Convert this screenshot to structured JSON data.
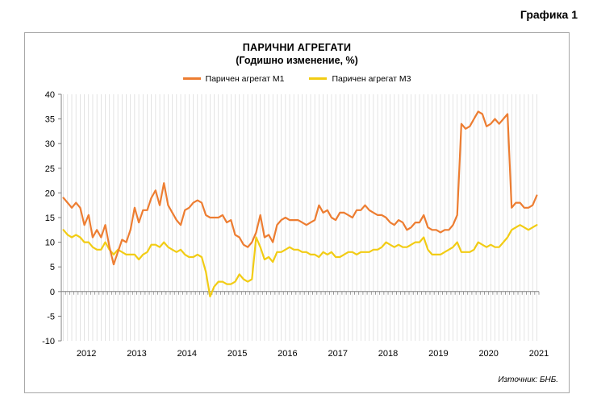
{
  "figure_label": "Графика 1",
  "source": "Източник: БНБ.",
  "chart_data": {
    "type": "line",
    "title": "ПАРИЧНИ АГРЕГАТИ",
    "subtitle": "(Годишно изменение, %)",
    "xlabel": "",
    "ylabel": "",
    "ylim": [
      -10,
      40
    ],
    "yticks": [
      40,
      35,
      30,
      25,
      20,
      15,
      10,
      5,
      0,
      -5,
      -10
    ],
    "x_tick_labels": [
      "2012",
      "2013",
      "2014",
      "2015",
      "2016",
      "2017",
      "2018",
      "2019",
      "2020",
      "2021"
    ],
    "x_start": "2012-01",
    "grid": true,
    "legend_position": "top",
    "series": [
      {
        "name": "Паричен агрегат М1",
        "color": "#ed7d31",
        "values": [
          19,
          18,
          17,
          18,
          17,
          13.5,
          15.5,
          11,
          12.5,
          11,
          13.5,
          9,
          5.5,
          8,
          10.5,
          10,
          12.5,
          17,
          14,
          16.5,
          16.5,
          19,
          20.5,
          17.5,
          22,
          17.5,
          16,
          14.5,
          13.5,
          16.5,
          17,
          18,
          18.5,
          18,
          15.5,
          15,
          15,
          15,
          15.5,
          14,
          14.5,
          11.5,
          11,
          9.5,
          9,
          10,
          12,
          15.5,
          11,
          11.5,
          10,
          13.5,
          14.5,
          15,
          14.5,
          14.5,
          14.5,
          14,
          13.5,
          14,
          14.5,
          17.5,
          16,
          16.5,
          15,
          14.5,
          16,
          16,
          15.5,
          15,
          16.5,
          16.5,
          17.5,
          16.5,
          16,
          15.5,
          15.5,
          15,
          14,
          13.5,
          14.5,
          14,
          12.5,
          13,
          14,
          14,
          15.5,
          13,
          12.5,
          12.5,
          12,
          12.5,
          12.5,
          13.5,
          15.5,
          34,
          33,
          33.5,
          35,
          36.5,
          36,
          33.5,
          34,
          35,
          34,
          35,
          36,
          17,
          18,
          18,
          17,
          17,
          17.5,
          19.5
        ]
      },
      {
        "name": "Паричен агрегат М3",
        "color": "#f2cc14",
        "values": [
          12.5,
          11.5,
          11,
          11.5,
          11,
          10,
          10,
          9,
          8.5,
          8.5,
          10,
          8.5,
          7.5,
          8.5,
          8,
          7.5,
          7.5,
          7.5,
          6.5,
          7.5,
          8,
          9.5,
          9.5,
          9,
          10,
          9,
          8.5,
          8,
          8.5,
          7.5,
          7,
          7,
          7.5,
          7,
          4,
          -1,
          1,
          2,
          2,
          1.5,
          1.5,
          2,
          3.5,
          2.5,
          2,
          2.5,
          11,
          9,
          6.5,
          7,
          6,
          8,
          8,
          8.5,
          9,
          8.5,
          8.5,
          8,
          8,
          7.5,
          7.5,
          7,
          8,
          7.5,
          8,
          7,
          7,
          7.5,
          8,
          8,
          7.5,
          8,
          8,
          8,
          8.5,
          8.5,
          9,
          10,
          9.5,
          9,
          9.5,
          9,
          9,
          9.5,
          10,
          10,
          11,
          8.5,
          7.5,
          7.5,
          7.5,
          8,
          8.5,
          9,
          10,
          8,
          8,
          8,
          8.5,
          10,
          9.5,
          9,
          9.5,
          9,
          9,
          10,
          11,
          12.5,
          13,
          13.5,
          13,
          12.5,
          13,
          13.5
        ]
      }
    ]
  }
}
